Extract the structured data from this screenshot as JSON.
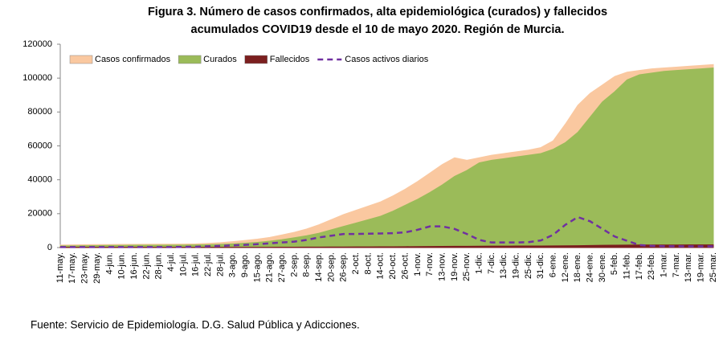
{
  "chart_data": {
    "type": "area",
    "title": [
      "Figura 3. Número de casos confirmados, alta epidemiológica (curados) y fallecidos",
      "acumulados COVID19 desde el 10 de mayo 2020. Región de Murcia."
    ],
    "categories": [
      "11-may.",
      "17-may.",
      "23-may.",
      "29-may.",
      "4-jun.",
      "10-jun.",
      "16-jun.",
      "22-jun.",
      "28-jun.",
      "4-jul.",
      "10-jul.",
      "16-jul.",
      "22-jul.",
      "28-jul.",
      "3-ago.",
      "9-ago.",
      "15-ago.",
      "21-ago.",
      "27-ago.",
      "2-sep.",
      "8-sep.",
      "14-sep.",
      "20-sep.",
      "26-sep.",
      "2-oct.",
      "8-oct.",
      "14-oct.",
      "20-oct.",
      "26-oct.",
      "1-nov.",
      "7-nov.",
      "13-nov.",
      "19-nov.",
      "25-nov.",
      "1-dic.",
      "7-dic.",
      "13-dic.",
      "19-dic.",
      "25-dic.",
      "31-dic.",
      "6-ene.",
      "12-ene.",
      "18-ene.",
      "24-ene.",
      "30-ene.",
      "5-feb.",
      "11-feb.",
      "17-feb.",
      "23-feb.",
      "1-mar.",
      "7-mar.",
      "13-mar.",
      "19-mar.",
      "25-mar."
    ],
    "series": [
      {
        "name": "Casos confirmados",
        "type": "area",
        "color": "#fac8a0",
        "values": [
          1500,
          1600,
          1700,
          1800,
          1800,
          1900,
          1900,
          1950,
          2000,
          2000,
          2100,
          2200,
          2500,
          2900,
          3500,
          4200,
          5000,
          6000,
          7500,
          9000,
          11000,
          13500,
          16500,
          19500,
          22000,
          24500,
          27000,
          30500,
          34500,
          39000,
          44000,
          49000,
          53000,
          51500,
          53000,
          54500,
          55500,
          56500,
          57500,
          59000,
          63000,
          73000,
          84000,
          91000,
          96000,
          101000,
          103500,
          104500,
          105500,
          106000,
          106500,
          107000,
          107500,
          108000
        ]
      },
      {
        "name": "Curados",
        "type": "area",
        "color": "#9bbb59",
        "values": [
          1000,
          1000,
          1100,
          1200,
          1300,
          1300,
          1400,
          1400,
          1400,
          1500,
          1500,
          1600,
          1700,
          1900,
          2200,
          2600,
          3100,
          3800,
          4700,
          5800,
          7000,
          8500,
          10500,
          12500,
          14500,
          16500,
          18500,
          21500,
          25000,
          28500,
          32500,
          37000,
          42000,
          45500,
          50000,
          51500,
          52500,
          53500,
          54500,
          55500,
          58000,
          62000,
          68000,
          77000,
          86000,
          92000,
          99000,
          102000,
          103000,
          104000,
          104500,
          105000,
          105500,
          106000
        ]
      },
      {
        "name": "Fallecidos",
        "type": "area",
        "color": "#7b1f1f",
        "values": [
          150,
          150,
          150,
          150,
          150,
          150,
          150,
          150,
          150,
          150,
          150,
          150,
          150,
          160,
          170,
          180,
          190,
          200,
          220,
          240,
          270,
          300,
          330,
          360,
          390,
          420,
          460,
          500,
          550,
          600,
          650,
          700,
          750,
          800,
          850,
          880,
          900,
          920,
          940,
          970,
          1000,
          1050,
          1150,
          1250,
          1350,
          1450,
          1500,
          1530,
          1550,
          1560,
          1570,
          1580,
          1590,
          1600
        ]
      },
      {
        "name": "Casos activos diarios",
        "type": "line",
        "color": "#7030a0",
        "values": [
          300,
          300,
          300,
          300,
          300,
          300,
          300,
          300,
          300,
          300,
          400,
          500,
          800,
          1000,
          1300,
          1600,
          2000,
          2500,
          3000,
          3500,
          4500,
          6000,
          7000,
          8000,
          8000,
          8200,
          8300,
          8500,
          9000,
          10500,
          12500,
          12500,
          11000,
          8000,
          4500,
          3000,
          3000,
          3000,
          3200,
          4200,
          7500,
          13500,
          18000,
          15500,
          11000,
          6500,
          4000,
          1500,
          1000,
          800,
          800,
          700,
          700,
          700
        ]
      }
    ],
    "ylim": [
      0,
      120000
    ],
    "yticks": [
      0,
      20000,
      40000,
      60000,
      80000,
      100000,
      120000
    ],
    "grid": false,
    "legend": "upper left",
    "source": "Fuente: Servicio de Epidemiología. D.G. Salud Pública y Adicciones."
  }
}
